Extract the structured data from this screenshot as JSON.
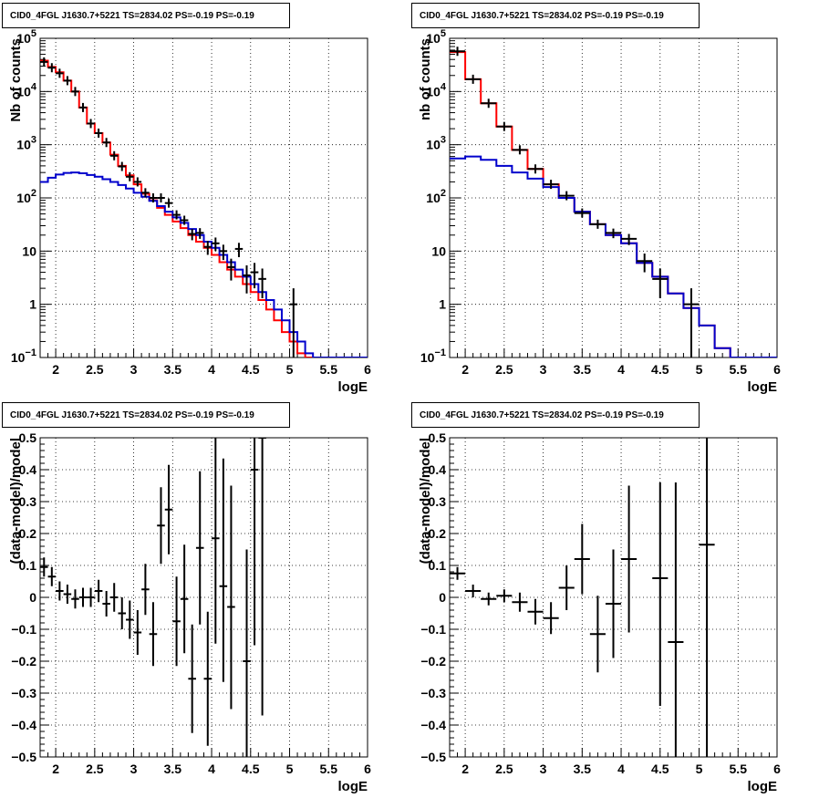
{
  "chart_data": [
    {
      "type": "histogram",
      "title": "CID0_4FGL J1630.7+5221 TS=2834.02 PS=-0.19 PS=-0.19",
      "xlabel": "logE",
      "ylabel": "Nb of counts",
      "xlim": [
        1.8,
        6
      ],
      "ylim": [
        0.1,
        100000
      ],
      "yscale": "log",
      "grid": true,
      "xticks": [
        "2",
        "2.5",
        "3",
        "3.5",
        "4",
        "4.5",
        "5",
        "5.5",
        "6"
      ],
      "yticks": [
        {
          "v": 0.1,
          "b": "10",
          "e": "−1"
        },
        {
          "v": 1,
          "t": "1"
        },
        {
          "v": 10,
          "t": "10"
        },
        {
          "v": 100,
          "b": "10",
          "e": "2"
        },
        {
          "v": 1000,
          "b": "10",
          "e": "3"
        },
        {
          "v": 10000,
          "b": "10",
          "e": "4"
        },
        {
          "v": 100000,
          "b": "10",
          "e": "5"
        }
      ],
      "series": [
        {
          "color": "#ff0000",
          "edges_start": 1.8,
          "bin_width": 0.1,
          "values": [
            38000,
            29000,
            23000,
            16000,
            10000,
            5000,
            2500,
            1650,
            1100,
            650,
            400,
            265,
            180,
            120,
            90,
            65,
            48,
            36,
            27,
            20,
            15,
            11.5,
            8.5,
            6.2,
            4.5,
            3.3,
            2.4,
            1.7,
            1.2,
            0.8,
            0.5,
            0.3,
            0.2,
            0.12,
            0.1,
            0.1,
            0.1,
            0.1,
            0.1,
            0.1,
            0.1,
            0.1
          ]
        },
        {
          "color": "#0000cc",
          "edges_start": 1.8,
          "bin_width": 0.1,
          "values": [
            200,
            240,
            275,
            295,
            300,
            290,
            270,
            250,
            225,
            200,
            175,
            150,
            125,
            105,
            88,
            70,
            55,
            43,
            34,
            26,
            20,
            15,
            11.5,
            8.5,
            6.2,
            4.5,
            3.3,
            2.4,
            1.7,
            1.2,
            0.8,
            0.5,
            0.3,
            0.2,
            0.12,
            0.1,
            0.1,
            0.1,
            0.1,
            0.1,
            0.1,
            0.1
          ]
        }
      ],
      "points": [
        {
          "x": 1.85,
          "y": 36000,
          "xe": 0.05,
          "el": 0,
          "eh": 0
        },
        {
          "x": 1.95,
          "y": 28000,
          "xe": 0.05,
          "el": 0,
          "eh": 0
        },
        {
          "x": 2.05,
          "y": 22000,
          "xe": 0.05,
          "el": 0,
          "eh": 0
        },
        {
          "x": 2.15,
          "y": 16000,
          "xe": 0.05,
          "el": 0,
          "eh": 0
        },
        {
          "x": 2.25,
          "y": 10000,
          "xe": 0.05,
          "el": 0,
          "eh": 0
        },
        {
          "x": 2.35,
          "y": 5000,
          "xe": 0.05,
          "el": 0,
          "eh": 0
        },
        {
          "x": 2.45,
          "y": 2500,
          "xe": 0.05,
          "el": 0,
          "eh": 0
        },
        {
          "x": 2.55,
          "y": 1650,
          "xe": 0.05,
          "el": 0,
          "eh": 0
        },
        {
          "x": 2.65,
          "y": 1100,
          "xe": 0.05,
          "el": 0,
          "eh": 0
        },
        {
          "x": 2.75,
          "y": 620,
          "xe": 0.05,
          "el": 0,
          "eh": 0
        },
        {
          "x": 2.85,
          "y": 390,
          "xe": 0.05,
          "el": 0,
          "eh": 0
        },
        {
          "x": 2.95,
          "y": 250,
          "xe": 0.05,
          "el": 0,
          "eh": 0
        },
        {
          "x": 3.05,
          "y": 200,
          "xe": 0.05,
          "el": 15,
          "eh": 15
        },
        {
          "x": 3.15,
          "y": 125,
          "xe": 0.05,
          "el": 12,
          "eh": 12
        },
        {
          "x": 3.25,
          "y": 100,
          "xe": 0.05,
          "el": 10,
          "eh": 10
        },
        {
          "x": 3.35,
          "y": 100,
          "xe": 0.05,
          "el": 10,
          "eh": 10
        },
        {
          "x": 3.45,
          "y": 80,
          "xe": 0.05,
          "el": 9,
          "eh": 9
        },
        {
          "x": 3.55,
          "y": 48,
          "xe": 0.05,
          "el": 7,
          "eh": 7
        },
        {
          "x": 3.65,
          "y": 38,
          "xe": 0.05,
          "el": 6,
          "eh": 6
        },
        {
          "x": 3.75,
          "y": 21,
          "xe": 0.05,
          "el": 5,
          "eh": 5
        },
        {
          "x": 3.85,
          "y": 22,
          "xe": 0.05,
          "el": 5,
          "eh": 5
        },
        {
          "x": 3.95,
          "y": 12,
          "xe": 0.05,
          "el": 3.5,
          "eh": 3.5
        },
        {
          "x": 4.05,
          "y": 14,
          "xe": 0.05,
          "el": 4,
          "eh": 4
        },
        {
          "x": 4.15,
          "y": 10,
          "xe": 0.05,
          "el": 3.2,
          "eh": 3.2
        },
        {
          "x": 4.25,
          "y": 5,
          "xe": 0.05,
          "el": 2.2,
          "eh": 2.2
        },
        {
          "x": 4.35,
          "y": 11,
          "xe": 0.05,
          "el": 3.3,
          "eh": 3.3
        },
        {
          "x": 4.45,
          "y": 3.5,
          "xe": 0.05,
          "el": 1.9,
          "eh": 1.9
        },
        {
          "x": 4.55,
          "y": 4,
          "xe": 0.05,
          "el": 2,
          "eh": 2
        },
        {
          "x": 4.65,
          "y": 3,
          "xe": 0.05,
          "el": 1.7,
          "eh": 1.7
        },
        {
          "x": 5.05,
          "y": 1,
          "xe": 0.05,
          "el": 0.99,
          "eh": 1.0
        }
      ]
    },
    {
      "type": "histogram",
      "title": "CID0_4FGL J1630.7+5221 TS=2834.02 PS=-0.19 PS=-0.19",
      "xlabel": "logE",
      "ylabel": "nb of counts",
      "xlim": [
        1.8,
        6
      ],
      "ylim": [
        0.1,
        100000
      ],
      "yscale": "log",
      "grid": true,
      "xticks": [
        "2",
        "2.5",
        "3",
        "3.5",
        "4",
        "4.5",
        "5",
        "5.5",
        "6"
      ],
      "yticks": [
        {
          "v": 0.1,
          "b": "10",
          "e": "−1"
        },
        {
          "v": 1,
          "t": "1"
        },
        {
          "v": 10,
          "t": "10"
        },
        {
          "v": 100,
          "b": "10",
          "e": "2"
        },
        {
          "v": 1000,
          "b": "10",
          "e": "3"
        },
        {
          "v": 10000,
          "b": "10",
          "e": "4"
        },
        {
          "v": 100000,
          "b": "10",
          "e": "5"
        }
      ],
      "series": [
        {
          "color": "#ff0000",
          "edges_start": 1.8,
          "bin_width": 0.2,
          "values": [
            55000,
            17000,
            6000,
            2200,
            800,
            350,
            180,
            100,
            55,
            32,
            20,
            14,
            6,
            3.3,
            1.6,
            0.85,
            0.4,
            0.15,
            0.1,
            0.1,
            0.1
          ]
        },
        {
          "color": "#0000cc",
          "edges_start": 1.8,
          "bin_width": 0.2,
          "values": [
            550,
            600,
            520,
            400,
            300,
            230,
            160,
            100,
            55,
            32,
            20,
            14,
            6,
            3.3,
            1.6,
            0.85,
            0.4,
            0.15,
            0.1,
            0.1,
            0.1
          ]
        }
      ],
      "points": [
        {
          "x": 1.9,
          "y": 57000,
          "xe": 0.1,
          "el": 0,
          "eh": 0
        },
        {
          "x": 2.1,
          "y": 17000,
          "xe": 0.1,
          "el": 0,
          "eh": 0
        },
        {
          "x": 2.3,
          "y": 6000,
          "xe": 0.1,
          "el": 0,
          "eh": 0
        },
        {
          "x": 2.5,
          "y": 2200,
          "xe": 0.1,
          "el": 0,
          "eh": 0
        },
        {
          "x": 2.7,
          "y": 800,
          "xe": 0.1,
          "el": 0,
          "eh": 0
        },
        {
          "x": 2.9,
          "y": 350,
          "xe": 0.1,
          "el": 0,
          "eh": 0
        },
        {
          "x": 3.1,
          "y": 180,
          "xe": 0.1,
          "el": 12,
          "eh": 12
        },
        {
          "x": 3.3,
          "y": 110,
          "xe": 0.1,
          "el": 10,
          "eh": 10
        },
        {
          "x": 3.5,
          "y": 52,
          "xe": 0.1,
          "el": 7,
          "eh": 7
        },
        {
          "x": 3.7,
          "y": 32,
          "xe": 0.1,
          "el": 5.5,
          "eh": 5.5
        },
        {
          "x": 3.9,
          "y": 22,
          "xe": 0.1,
          "el": 4.5,
          "eh": 4.5
        },
        {
          "x": 4.1,
          "y": 17,
          "xe": 0.1,
          "el": 4,
          "eh": 4
        },
        {
          "x": 4.3,
          "y": 6.5,
          "xe": 0.1,
          "el": 2.5,
          "eh": 2.5
        },
        {
          "x": 4.5,
          "y": 3,
          "xe": 0.1,
          "el": 1.7,
          "eh": 1.7
        },
        {
          "x": 4.9,
          "y": 1,
          "xe": 0.1,
          "el": 0.99,
          "eh": 1.0
        }
      ]
    },
    {
      "type": "scatter",
      "title": "CID0_4FGL J1630.7+5221 TS=2834.02 PS=-0.19 PS=-0.19",
      "xlabel": "logE",
      "ylabel": "(data-model)/model",
      "xlim": [
        1.8,
        6
      ],
      "ylim": [
        -0.5,
        0.5
      ],
      "yscale": "linear",
      "grid": true,
      "xticks": [
        "2",
        "2.5",
        "3",
        "3.5",
        "4",
        "4.5",
        "5",
        "5.5",
        "6"
      ],
      "yticks": [
        {
          "v": -0.5,
          "t": "−0.5"
        },
        {
          "v": -0.4,
          "t": "−0.4"
        },
        {
          "v": -0.3,
          "t": "−0.3"
        },
        {
          "v": -0.2,
          "t": "−0.2"
        },
        {
          "v": -0.1,
          "t": "−0.1"
        },
        {
          "v": 0,
          "t": "0"
        },
        {
          "v": 0.1,
          "t": "0.1"
        },
        {
          "v": 0.2,
          "t": "0.2"
        },
        {
          "v": 0.3,
          "t": "0.3"
        },
        {
          "v": 0.4,
          "t": "0.4"
        },
        {
          "v": 0.5,
          "t": "0.5"
        }
      ],
      "series": [],
      "points": [
        {
          "x": 1.85,
          "y": 0.095,
          "xe": 0.05,
          "el": 0.03,
          "eh": 0.03
        },
        {
          "x": 1.95,
          "y": 0.065,
          "xe": 0.05,
          "el": 0.03,
          "eh": 0.03
        },
        {
          "x": 2.05,
          "y": 0.02,
          "xe": 0.05,
          "el": 0.03,
          "eh": 0.03
        },
        {
          "x": 2.15,
          "y": 0.01,
          "xe": 0.05,
          "el": 0.03,
          "eh": 0.03
        },
        {
          "x": 2.25,
          "y": -0.005,
          "xe": 0.05,
          "el": 0.03,
          "eh": 0.03
        },
        {
          "x": 2.35,
          "y": 0.0,
          "xe": 0.05,
          "el": 0.03,
          "eh": 0.03
        },
        {
          "x": 2.45,
          "y": 0.0,
          "xe": 0.05,
          "el": 0.03,
          "eh": 0.03
        },
        {
          "x": 2.55,
          "y": 0.02,
          "xe": 0.05,
          "el": 0.035,
          "eh": 0.035
        },
        {
          "x": 2.65,
          "y": -0.02,
          "xe": 0.05,
          "el": 0.04,
          "eh": 0.04
        },
        {
          "x": 2.75,
          "y": 0.0,
          "xe": 0.05,
          "el": 0.045,
          "eh": 0.045
        },
        {
          "x": 2.85,
          "y": -0.05,
          "xe": 0.05,
          "el": 0.05,
          "eh": 0.05
        },
        {
          "x": 2.95,
          "y": -0.07,
          "xe": 0.05,
          "el": 0.06,
          "eh": 0.06
        },
        {
          "x": 3.05,
          "y": -0.11,
          "xe": 0.05,
          "el": 0.07,
          "eh": 0.07
        },
        {
          "x": 3.15,
          "y": 0.025,
          "xe": 0.05,
          "el": 0.08,
          "eh": 0.08
        },
        {
          "x": 3.25,
          "y": -0.115,
          "xe": 0.05,
          "el": 0.1,
          "eh": 0.1
        },
        {
          "x": 3.35,
          "y": 0.225,
          "xe": 0.05,
          "el": 0.12,
          "eh": 0.12
        },
        {
          "x": 3.45,
          "y": 0.275,
          "xe": 0.05,
          "el": 0.14,
          "eh": 0.14
        },
        {
          "x": 3.55,
          "y": -0.075,
          "xe": 0.05,
          "el": 0.14,
          "eh": 0.14
        },
        {
          "x": 3.65,
          "y": -0.005,
          "xe": 0.05,
          "el": 0.17,
          "eh": 0.17
        },
        {
          "x": 3.75,
          "y": -0.255,
          "xe": 0.05,
          "el": 0.17,
          "eh": 0.17
        },
        {
          "x": 3.85,
          "y": 0.155,
          "xe": 0.05,
          "el": 0.24,
          "eh": 0.24
        },
        {
          "x": 3.95,
          "y": -0.255,
          "xe": 0.05,
          "el": 0.21,
          "eh": 0.21
        },
        {
          "x": 4.05,
          "y": 0.185,
          "xe": 0.05,
          "el": 0.33,
          "eh": 0.33
        },
        {
          "x": 4.15,
          "y": 0.035,
          "xe": 0.05,
          "el": 0.3,
          "eh": 0.4
        },
        {
          "x": 4.25,
          "y": -0.03,
          "xe": 0.05,
          "el": 0.32,
          "eh": 0.38
        },
        {
          "x": 4.45,
          "y": -0.2,
          "xe": 0.05,
          "el": 0.35,
          "eh": 0.35
        },
        {
          "x": 4.55,
          "y": 0.4,
          "xe": 0.05,
          "el": 0.55,
          "eh": 0.6
        },
        {
          "x": 4.65,
          "y": 0.5,
          "xe": 0.05,
          "el": 0.87,
          "eh": 0.6
        }
      ]
    },
    {
      "type": "scatter",
      "title": "CID0_4FGL J1630.7+5221 TS=2834.02 PS=-0.19 PS=-0.19",
      "xlabel": "logE",
      "ylabel": "(data-model)/model",
      "xlim": [
        1.8,
        6
      ],
      "ylim": [
        -0.5,
        0.5
      ],
      "yscale": "linear",
      "grid": true,
      "xticks": [
        "2",
        "2.5",
        "3",
        "3.5",
        "4",
        "4.5",
        "5",
        "5.5",
        "6"
      ],
      "yticks": [
        {
          "v": -0.5,
          "t": "−0.5"
        },
        {
          "v": -0.4,
          "t": "−0.4"
        },
        {
          "v": -0.3,
          "t": "−0.3"
        },
        {
          "v": -0.2,
          "t": "−0.2"
        },
        {
          "v": -0.1,
          "t": "−0.1"
        },
        {
          "v": 0,
          "t": "0"
        },
        {
          "v": 0.1,
          "t": "0.1"
        },
        {
          "v": 0.2,
          "t": "0.2"
        },
        {
          "v": 0.3,
          "t": "0.3"
        },
        {
          "v": 0.4,
          "t": "0.4"
        },
        {
          "v": 0.5,
          "t": "0.5"
        }
      ],
      "series": [],
      "points": [
        {
          "x": 1.9,
          "y": 0.075,
          "xe": 0.1,
          "el": 0.02,
          "eh": 0.02
        },
        {
          "x": 2.1,
          "y": 0.02,
          "xe": 0.1,
          "el": 0.02,
          "eh": 0.02
        },
        {
          "x": 2.3,
          "y": -0.005,
          "xe": 0.1,
          "el": 0.02,
          "eh": 0.02
        },
        {
          "x": 2.5,
          "y": 0.005,
          "xe": 0.1,
          "el": 0.02,
          "eh": 0.02
        },
        {
          "x": 2.7,
          "y": -0.015,
          "xe": 0.1,
          "el": 0.03,
          "eh": 0.03
        },
        {
          "x": 2.9,
          "y": -0.045,
          "xe": 0.1,
          "el": 0.04,
          "eh": 0.04
        },
        {
          "x": 3.1,
          "y": -0.065,
          "xe": 0.1,
          "el": 0.05,
          "eh": 0.05
        },
        {
          "x": 3.3,
          "y": 0.03,
          "xe": 0.1,
          "el": 0.07,
          "eh": 0.07
        },
        {
          "x": 3.5,
          "y": 0.12,
          "xe": 0.1,
          "el": 0.11,
          "eh": 0.11
        },
        {
          "x": 3.7,
          "y": -0.115,
          "xe": 0.1,
          "el": 0.12,
          "eh": 0.12
        },
        {
          "x": 3.9,
          "y": -0.02,
          "xe": 0.1,
          "el": 0.17,
          "eh": 0.17
        },
        {
          "x": 4.1,
          "y": 0.12,
          "xe": 0.1,
          "el": 0.23,
          "eh": 0.23
        },
        {
          "x": 4.5,
          "y": 0.06,
          "xe": 0.1,
          "el": 0.4,
          "eh": 0.3
        },
        {
          "x": 4.7,
          "y": -0.14,
          "xe": 0.1,
          "el": 0.55,
          "eh": 0.5
        },
        {
          "x": 5.1,
          "y": 0.165,
          "xe": 0.1,
          "el": 0.7,
          "eh": 0.5
        }
      ]
    }
  ]
}
